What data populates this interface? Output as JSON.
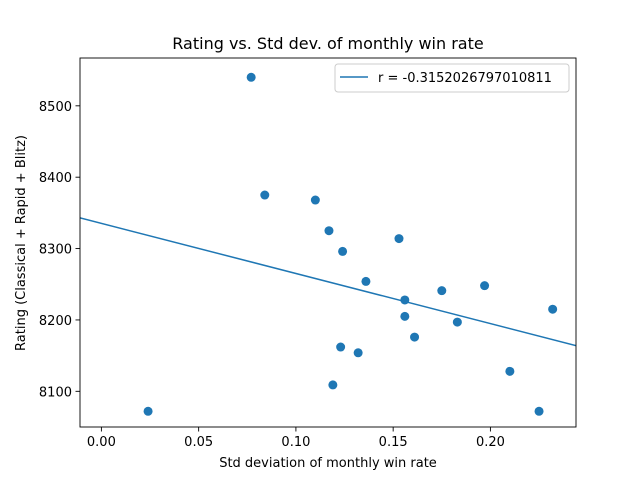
{
  "chart_data": {
    "type": "scatter",
    "title": "Rating vs. Std dev. of monthly win rate",
    "xlabel": "Std deviation of monthly win rate",
    "ylabel": "Rating (Classical + Rapid + Blitz)",
    "xlim": [
      -0.011,
      0.244
    ],
    "ylim": [
      8050,
      8567
    ],
    "xticks": [
      "0.00",
      "0.05",
      "0.10",
      "0.15",
      "0.20"
    ],
    "yticks": [
      "8100",
      "8200",
      "8300",
      "8400",
      "8500"
    ],
    "grid": false,
    "legend_position": "top-right",
    "colors": {
      "series": "#1f77b4",
      "frame": "#000000",
      "legend_border": "#cccccc"
    },
    "points": [
      {
        "x": 0.077,
        "y": 8540
      },
      {
        "x": 0.084,
        "y": 8375
      },
      {
        "x": 0.11,
        "y": 8368
      },
      {
        "x": 0.117,
        "y": 8325
      },
      {
        "x": 0.124,
        "y": 8296
      },
      {
        "x": 0.153,
        "y": 8314
      },
      {
        "x": 0.136,
        "y": 8254
      },
      {
        "x": 0.156,
        "y": 8228
      },
      {
        "x": 0.175,
        "y": 8241
      },
      {
        "x": 0.197,
        "y": 8248
      },
      {
        "x": 0.156,
        "y": 8205
      },
      {
        "x": 0.183,
        "y": 8197
      },
      {
        "x": 0.161,
        "y": 8176
      },
      {
        "x": 0.232,
        "y": 8215
      },
      {
        "x": 0.123,
        "y": 8162
      },
      {
        "x": 0.132,
        "y": 8154
      },
      {
        "x": 0.119,
        "y": 8109
      },
      {
        "x": 0.21,
        "y": 8128
      },
      {
        "x": 0.024,
        "y": 8072
      },
      {
        "x": 0.225,
        "y": 8072
      }
    ],
    "fit_line": {
      "label": "r = -0.3152026797010811",
      "start": {
        "x": -0.011,
        "y": 8343
      },
      "end": {
        "x": 0.244,
        "y": 8164
      }
    }
  }
}
